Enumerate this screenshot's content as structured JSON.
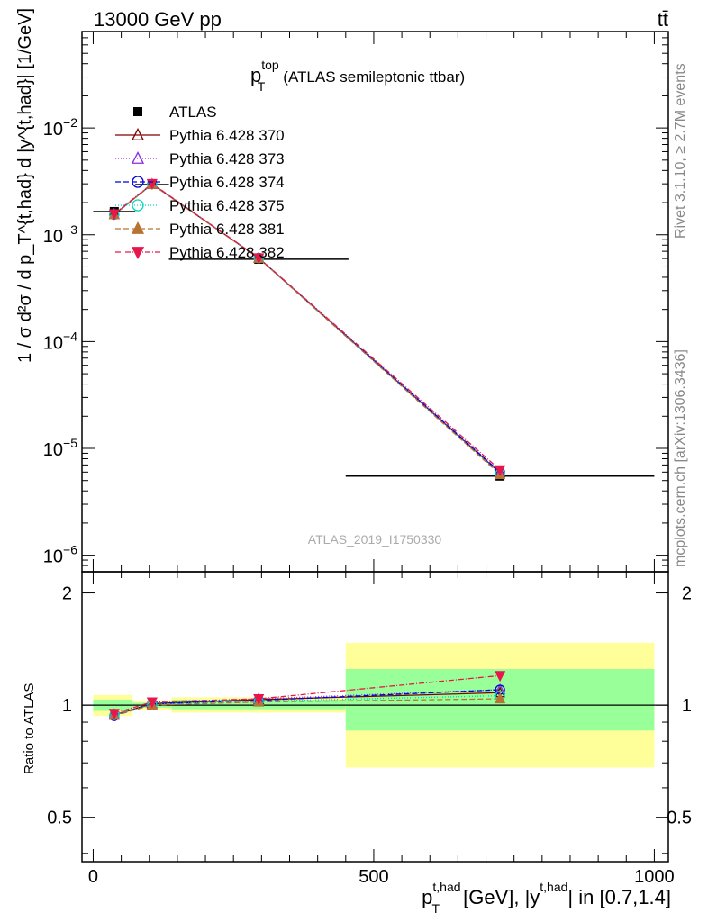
{
  "header": {
    "energy_label": "13000 GeV pp",
    "process_label": "tt̄"
  },
  "side_labels": {
    "rivet": "Rivet 3.1.10, ≥ 2.7M events",
    "mcplots": "mcplots.cern.ch [arXiv:1306.3436]"
  },
  "chart_data": [
    {
      "type": "line",
      "title_main": "p",
      "title_sup": "top",
      "title_sub": "T",
      "title_rest": "(ATLAS semileptonic ttbar)",
      "watermark": "ATLAS_2019_I1750330",
      "ylabel": "1 / σ d²σ / d p_T^{t,had} d |y^{t,had}| [1/GeV]",
      "yscale": "log",
      "ylim": [
        7e-07,
        0.08
      ],
      "y_ticks": [
        {
          "v": 1e-06,
          "m": "10",
          "e": "−6"
        },
        {
          "v": 1e-05,
          "m": "10",
          "e": "−5"
        },
        {
          "v": 0.0001,
          "m": "10",
          "e": "−4"
        },
        {
          "v": 0.001,
          "m": "10",
          "e": "−3"
        },
        {
          "v": 0.01,
          "m": "10",
          "e": "−2"
        }
      ],
      "xlim": [
        -20,
        1025
      ],
      "legend_position": "top-left",
      "data": {
        "name": "ATLAS",
        "x": [
          37.5,
          105,
          295,
          725
        ],
        "y": [
          0.00165,
          0.00295,
          0.00059,
          5.5e-06
        ],
        "xerr": [
          37.5,
          30,
          160,
          275
        ]
      },
      "series": [
        {
          "name": "Pythia 6.428 370",
          "color": "#800000",
          "marker": "triangle-open",
          "dash": "",
          "x": [
            37.5,
            105,
            295,
            725
          ],
          "y": [
            0.00155,
            0.00298,
            0.000605,
            5.9e-06
          ]
        },
        {
          "name": "Pythia 6.428 373",
          "color": "#8b2be2",
          "marker": "triangle-open",
          "dash": "1,2",
          "x": [
            37.5,
            105,
            295,
            725
          ],
          "y": [
            0.00156,
            0.00297,
            0.000607,
            6e-06
          ]
        },
        {
          "name": "Pythia 6.428 374",
          "color": "#0000dd",
          "marker": "circle-open",
          "dash": "6,3",
          "x": [
            37.5,
            105,
            295,
            725
          ],
          "y": [
            0.00154,
            0.00298,
            0.000606,
            6e-06
          ]
        },
        {
          "name": "Pythia 6.428 375",
          "color": "#00d5c0",
          "marker": "circle-open",
          "dash": "1,2",
          "x": [
            37.5,
            105,
            295,
            725
          ],
          "y": [
            0.00155,
            0.00297,
            0.000604,
            5.8e-06
          ]
        },
        {
          "name": "Pythia 6.428 381",
          "color": "#b87333",
          "marker": "triangle-filled",
          "dash": "6,3",
          "x": [
            37.5,
            105,
            295,
            725
          ],
          "y": [
            0.00155,
            0.00296,
            0.000603,
            5.7e-06
          ]
        },
        {
          "name": "Pythia 6.428 382",
          "color": "#e8174b",
          "marker": "triangle-down-filled",
          "dash": "6,2,1,2",
          "x": [
            37.5,
            105,
            295,
            725
          ],
          "y": [
            0.00157,
            0.00301,
            0.000608,
            6.3e-06
          ]
        }
      ]
    },
    {
      "type": "line",
      "ylabel": "Ratio to ATLAS",
      "xlabel_main": "p",
      "xlabel_sup": "t,had",
      "xlabel_sub": "T",
      "xlabel_rest1": "[GeV], |y",
      "xlabel_sup2": "t,had",
      "xlabel_rest2": "| in [0.7,1.4]",
      "ylim": [
        0.38,
        2.28
      ],
      "y_ticks": [
        0.5,
        1,
        2
      ],
      "y_tick_labels": [
        "0.5",
        "1",
        "2"
      ],
      "x_ticks": [
        0,
        500,
        1000
      ],
      "x_tick_labels": [
        "0",
        "500",
        "1000"
      ],
      "xlim": [
        -20,
        1025
      ],
      "bands": [
        {
          "x0": 0,
          "x1": 70,
          "inner": [
            0.965,
            1.035
          ],
          "outer": [
            0.935,
            1.065
          ]
        },
        {
          "x0": 70,
          "x1": 140,
          "inner": [
            0.985,
            1.015
          ],
          "outer": [
            0.97,
            1.03
          ]
        },
        {
          "x0": 140,
          "x1": 450,
          "inner": [
            0.975,
            1.035
          ],
          "outer": [
            0.955,
            1.05
          ]
        },
        {
          "x0": 450,
          "x1": 1000,
          "inner": [
            0.855,
            1.25
          ],
          "outer": [
            0.68,
            1.47
          ]
        }
      ],
      "series": [
        {
          "name": "Pythia 6.428 370",
          "x": [
            37.5,
            105,
            295,
            725
          ],
          "y": [
            0.94,
            1.01,
            1.035,
            1.08
          ]
        },
        {
          "name": "Pythia 6.428 373",
          "x": [
            37.5,
            105,
            295,
            725
          ],
          "y": [
            0.945,
            1.005,
            1.04,
            1.1
          ]
        },
        {
          "name": "Pythia 6.428 374",
          "x": [
            37.5,
            105,
            295,
            725
          ],
          "y": [
            0.935,
            1.008,
            1.03,
            1.1
          ]
        },
        {
          "name": "Pythia 6.428 375",
          "x": [
            37.5,
            105,
            295,
            725
          ],
          "y": [
            0.94,
            1.005,
            1.025,
            1.06
          ]
        },
        {
          "name": "Pythia 6.428 381",
          "x": [
            37.5,
            105,
            295,
            725
          ],
          "y": [
            0.94,
            1.0,
            1.02,
            1.04
          ]
        },
        {
          "name": "Pythia 6.428 382",
          "x": [
            37.5,
            105,
            295,
            725
          ],
          "y": [
            0.95,
            1.02,
            1.04,
            1.2
          ]
        }
      ]
    }
  ]
}
